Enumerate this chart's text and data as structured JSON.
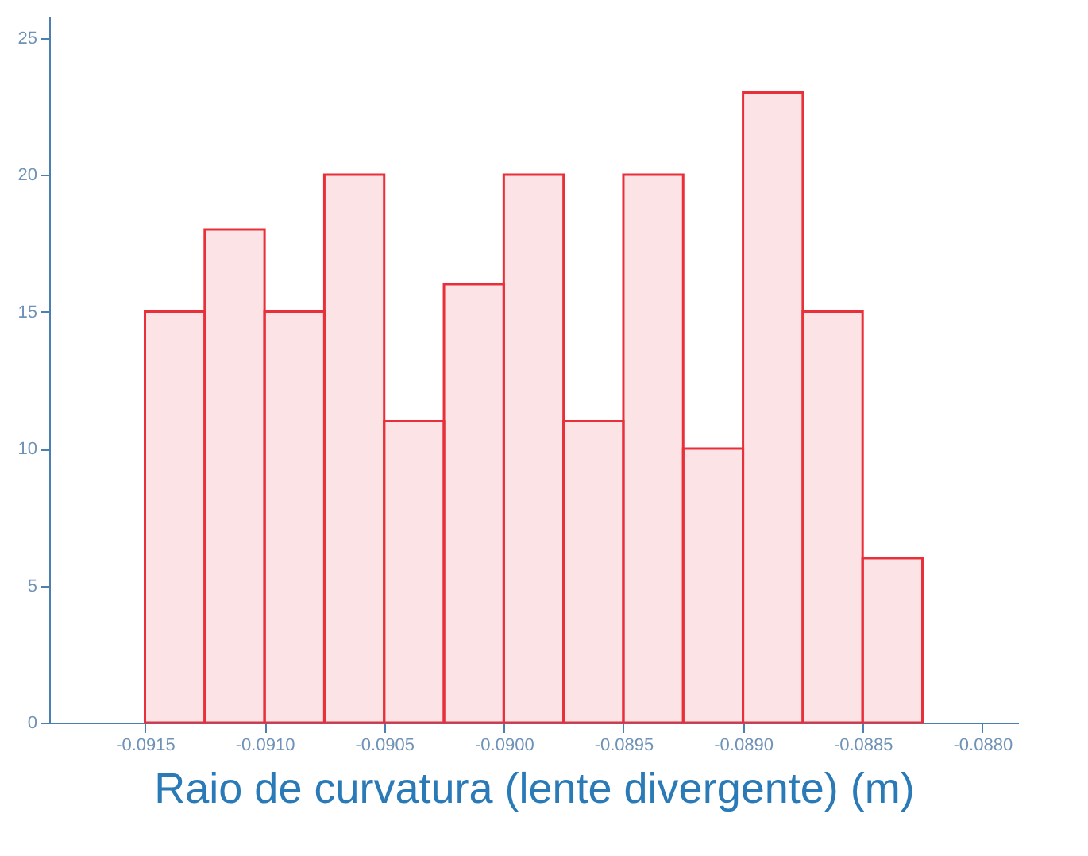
{
  "chart_data": {
    "type": "histogram",
    "xlabel": "Raio de curvatura (lente divergente) (m)",
    "bins": [
      -0.0915,
      -0.09125,
      -0.091,
      -0.09075,
      -0.0905,
      -0.09025,
      -0.09,
      -0.08975,
      -0.0895,
      -0.08925,
      -0.089,
      -0.08875,
      -0.0885,
      -0.08825
    ],
    "values": [
      15,
      18,
      15,
      20,
      11,
      16,
      20,
      11,
      20,
      10,
      23,
      15,
      6
    ],
    "color": "#e8303a",
    "xlim": [
      -0.0919,
      -0.08785
    ],
    "xticks": [
      {
        "value": -0.0915,
        "label": "-0.0915"
      },
      {
        "value": -0.091,
        "label": "-0.0910"
      },
      {
        "value": -0.0905,
        "label": "-0.0905"
      },
      {
        "value": -0.09,
        "label": "-0.0900"
      },
      {
        "value": -0.0895,
        "label": "-0.0895"
      },
      {
        "value": -0.089,
        "label": "-0.0890"
      },
      {
        "value": -0.0885,
        "label": "-0.0885"
      },
      {
        "value": -0.088,
        "label": "-0.0880"
      }
    ],
    "ylim": [
      0,
      25.8
    ],
    "yticks": [
      0,
      5,
      10,
      15,
      20,
      25
    ],
    "grid": false
  }
}
